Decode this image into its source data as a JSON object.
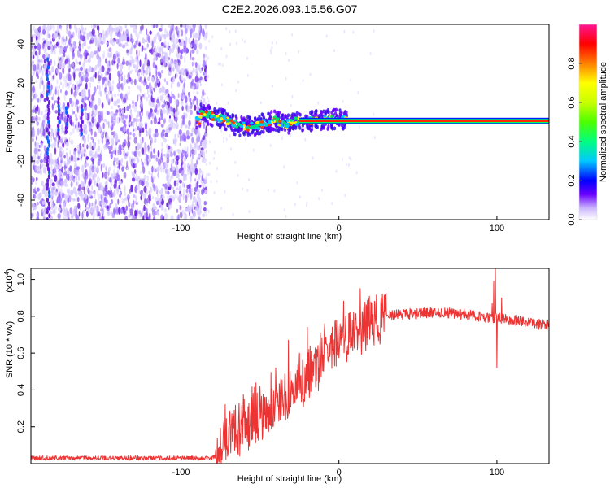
{
  "title": "C2E2.2026.093.15.56.G07",
  "colors": {
    "line": "#ee3333",
    "frame": "#000000",
    "spectro_low": "#d8ccff",
    "spectro_mid": "#6a1fe0",
    "colormap": [
      "#ffffff",
      "#9a6cff",
      "#6a00ff",
      "#0000ff",
      "#00c8ff",
      "#00ff80",
      "#7fff00",
      "#ffff00",
      "#ff8000",
      "#ff0000",
      "#ff0066",
      "#ff1493"
    ]
  },
  "chart_data": [
    {
      "type": "heatmap",
      "name": "spectrogram",
      "xlabel": "Height of straight line (km)",
      "ylabel": "Frequency (Hz)",
      "xlim": [
        -195,
        133
      ],
      "ylim": [
        -50,
        50
      ],
      "xticks": [
        -100,
        0,
        100
      ],
      "xtick_labels": [
        "-100",
        "0",
        "100"
      ],
      "yticks": [
        -40,
        -20,
        0,
        20,
        40
      ],
      "ytick_labels": [
        "-40",
        "-20",
        "0",
        "20",
        "40"
      ],
      "noise_region": [
        -195,
        -84
      ],
      "noise_sparse_region": [
        -84,
        133
      ],
      "transition_region": [
        -90,
        5
      ],
      "carrier_from": -25,
      "carrier_frequency": 0.5,
      "vertical_streaks": [
        {
          "x": -184,
          "y_from": -50,
          "y_to": 32
        },
        {
          "x": -177,
          "y_from": -8,
          "y_to": 12
        },
        {
          "x": -172,
          "y_from": -5,
          "y_to": 10
        },
        {
          "x": -163,
          "y_from": -6,
          "y_to": 8
        }
      ],
      "transition_trace": [
        [
          -88,
          4
        ],
        [
          -80,
          3
        ],
        [
          -72,
          1
        ],
        [
          -64,
          -2
        ],
        [
          -56,
          -2.5
        ],
        [
          -48,
          -1
        ],
        [
          -40,
          1
        ],
        [
          -34,
          -1.5
        ],
        [
          -28,
          0.5
        ],
        [
          -20,
          0.5
        ],
        [
          -10,
          1
        ],
        [
          -5,
          1.5
        ],
        [
          5,
          0.8
        ]
      ],
      "colorbar": {
        "label": "Normalized spectral amplitude",
        "range": [
          0,
          1
        ],
        "ticks": [
          0,
          0.2,
          0.4,
          0.6,
          0.8
        ],
        "tick_labels": [
          "0.0",
          "0.2",
          "0.4",
          "0.6",
          "0.8"
        ]
      }
    },
    {
      "type": "line",
      "name": "snr",
      "xlabel": "Height of straight line (km)",
      "ylabel": "SNR (10 * v/v)",
      "scale_label": "(x10",
      "scale_exponent": "4",
      "scale_suffix": ")",
      "xlim": [
        -195,
        133
      ],
      "ylim": [
        0,
        1.06
      ],
      "xticks": [
        -100,
        0,
        100
      ],
      "xtick_labels": [
        "-100",
        "0",
        "100"
      ],
      "yticks": [
        0.2,
        0.4,
        0.6,
        0.8,
        1.0
      ],
      "ytick_labels": [
        "0.2",
        "0.4",
        "0.6",
        "0.8",
        "1.0"
      ],
      "baseline_level": 0.03,
      "envelope": [
        [
          -195,
          0.03
        ],
        [
          -80,
          0.03
        ],
        [
          -76,
          0.05
        ],
        [
          -70,
          0.15
        ],
        [
          -60,
          0.2
        ],
        [
          -50,
          0.25
        ],
        [
          -40,
          0.3
        ],
        [
          -30,
          0.38
        ],
        [
          -20,
          0.48
        ],
        [
          -10,
          0.58
        ],
        [
          0,
          0.66
        ],
        [
          10,
          0.72
        ],
        [
          20,
          0.77
        ],
        [
          30,
          0.8
        ],
        [
          40,
          0.81
        ],
        [
          60,
          0.82
        ],
        [
          80,
          0.81
        ],
        [
          90,
          0.8
        ],
        [
          100,
          0.79
        ],
        [
          110,
          0.78
        ],
        [
          133,
          0.75
        ]
      ],
      "spikes": [
        [
          -72,
          0.32
        ],
        [
          -69,
          0.28
        ],
        [
          -60,
          0.35
        ],
        [
          -50,
          0.42
        ],
        [
          -40,
          0.52
        ],
        [
          -32,
          0.67
        ],
        [
          -25,
          0.6
        ],
        [
          -20,
          0.74
        ],
        [
          -14,
          0.62
        ],
        [
          -9,
          0.76
        ],
        [
          -2,
          0.72
        ],
        [
          7,
          0.82
        ],
        [
          13,
          0.78
        ],
        [
          97,
          0.87
        ],
        [
          98,
          0.99
        ],
        [
          99,
          1.06
        ],
        [
          100,
          0.52
        ],
        [
          103,
          0.9
        ]
      ]
    }
  ]
}
